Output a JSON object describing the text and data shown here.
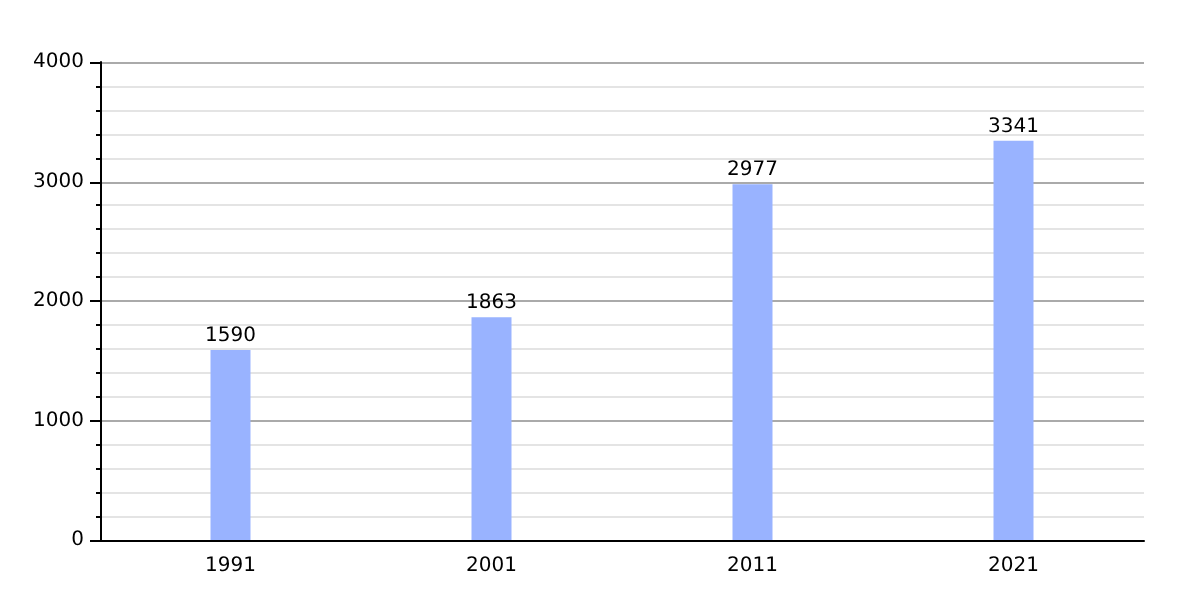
{
  "chart_data": {
    "type": "bar",
    "categories": [
      "1991",
      "2001",
      "2011",
      "2021"
    ],
    "values": [
      1590,
      1863,
      2977,
      3341
    ],
    "color": "#99b3ff",
    "ylim": [
      0,
      4000
    ],
    "yticks": [
      0,
      1000,
      2000,
      3000,
      4000
    ],
    "grid": "y",
    "data_labels": true
  }
}
